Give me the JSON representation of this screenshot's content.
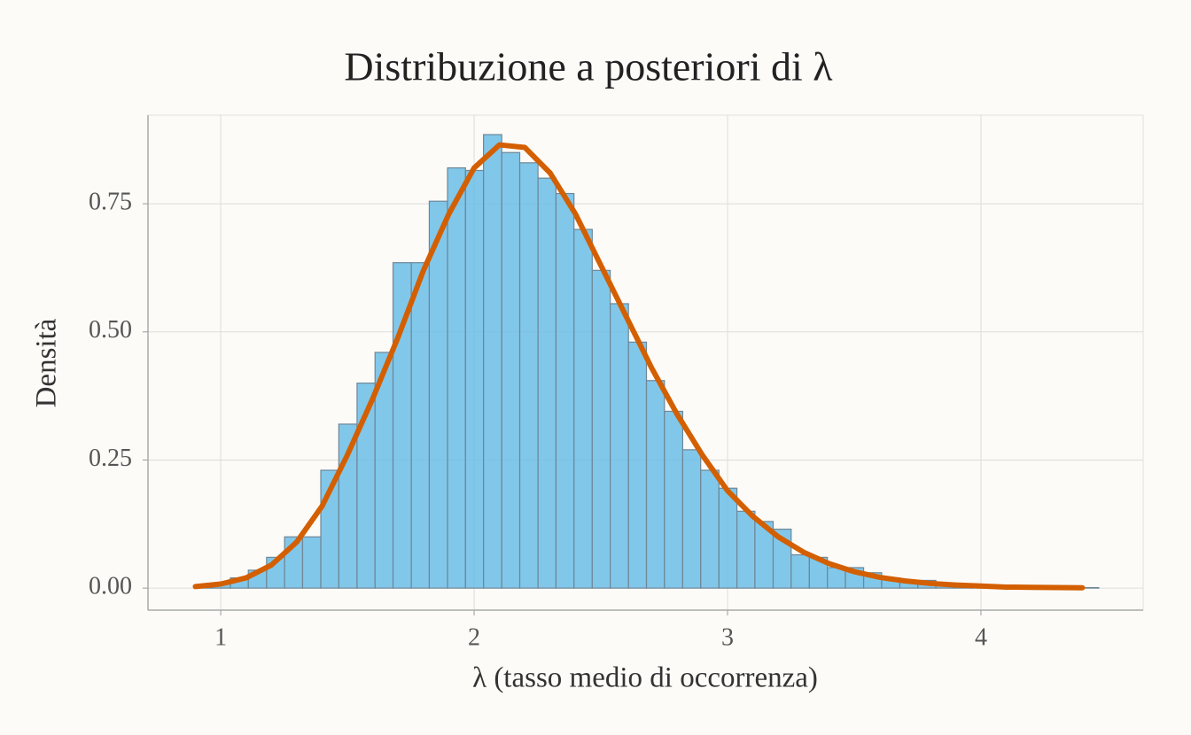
{
  "chart_data": {
    "type": "histogram",
    "title": "Distribuzione a posteriori di λ",
    "xlabel": "λ (tasso medio di occorrenza)",
    "ylabel": "Densità",
    "bins": [
      0.895,
      0.966,
      1.038,
      1.109,
      1.181,
      1.252,
      1.323,
      1.395,
      1.466,
      1.538,
      1.609,
      1.68,
      1.752,
      1.823,
      1.895,
      1.966,
      2.037,
      2.109,
      2.18,
      2.252,
      2.323,
      2.394,
      2.466,
      2.537,
      2.609,
      2.68,
      2.751,
      2.823,
      2.894,
      2.966,
      3.037,
      3.108,
      3.18,
      3.251,
      3.323,
      3.394,
      3.465,
      3.537,
      3.608,
      3.68,
      3.751,
      3.822,
      3.894,
      3.965,
      4.037,
      4.108,
      4.179,
      4.251,
      4.322,
      4.394,
      4.465
    ],
    "values": [
      0.003,
      0.01,
      0.02,
      0.035,
      0.06,
      0.1,
      0.1,
      0.23,
      0.32,
      0.4,
      0.46,
      0.635,
      0.635,
      0.755,
      0.82,
      0.815,
      0.885,
      0.85,
      0.83,
      0.8,
      0.77,
      0.7,
      0.62,
      0.555,
      0.48,
      0.405,
      0.345,
      0.27,
      0.23,
      0.195,
      0.15,
      0.13,
      0.115,
      0.065,
      0.06,
      0.04,
      0.04,
      0.03,
      0.02,
      0.015,
      0.015,
      0.01,
      0.008,
      0.005,
      0.004,
      0.003,
      0.002,
      0.002,
      0.001,
      0.001
    ],
    "color": "#6bbde8",
    "curve": {
      "type": "line",
      "color": "#d35f00",
      "x": [
        0.9,
        1.0,
        1.1,
        1.2,
        1.3,
        1.4,
        1.5,
        1.6,
        1.7,
        1.8,
        1.9,
        2.0,
        2.1,
        2.2,
        2.3,
        2.4,
        2.5,
        2.6,
        2.7,
        2.8,
        2.9,
        3.0,
        3.1,
        3.2,
        3.3,
        3.4,
        3.5,
        3.6,
        3.7,
        3.8,
        3.9,
        4.0,
        4.1,
        4.2,
        4.3,
        4.4
      ],
      "values": [
        0.003,
        0.008,
        0.02,
        0.045,
        0.09,
        0.16,
        0.26,
        0.37,
        0.49,
        0.62,
        0.73,
        0.82,
        0.865,
        0.86,
        0.81,
        0.73,
        0.63,
        0.53,
        0.43,
        0.34,
        0.26,
        0.19,
        0.14,
        0.1,
        0.07,
        0.048,
        0.032,
        0.021,
        0.014,
        0.009,
        0.006,
        0.004,
        0.002,
        0.0015,
        0.001,
        0.0006
      ]
    },
    "xlim": [
      0.713,
      4.64
    ],
    "ylim": [
      -0.043,
      0.923
    ],
    "xticks": [
      1,
      2,
      3,
      4
    ],
    "yticks": [
      {
        "value": 0,
        "label": "0.00"
      },
      0.25,
      {
        "value": 0.5,
        "label": "0.50"
      },
      0.75
    ],
    "grid": true
  }
}
